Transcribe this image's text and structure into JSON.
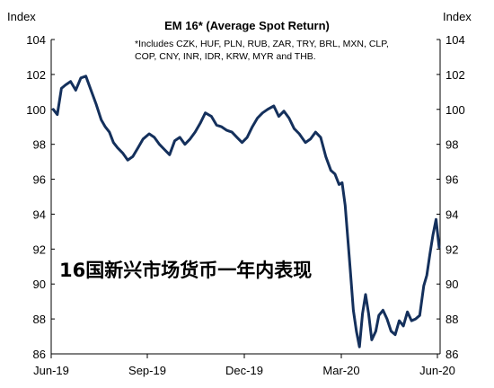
{
  "chart_data": {
    "type": "line",
    "title": "EM 16* (Average Spot Return)",
    "note_lines": [
      "*Includes CZK, HUF, PLN, RUB, ZAR, TRY, BRL, MXN, CLP,",
      "COP, CNY, INR, IDR, KRW, MYR and THB."
    ],
    "overlay_text": "16国新兴市场货币一年内表现",
    "ylabel_left": "Index",
    "ylabel_right": "Index",
    "ylim": [
      86,
      104
    ],
    "yticks": [
      "104",
      "102",
      "100",
      "98",
      "96",
      "94",
      "92",
      "90",
      "88",
      "86"
    ],
    "xticks": [
      "Jun-19",
      "Sep-19",
      "Dec-19",
      "Mar-20",
      "Jun-20"
    ],
    "grid": false,
    "color": "#14305c",
    "series": [
      {
        "x": [
          "2019-06-03",
          "2019-06-07",
          "2019-06-11",
          "2019-06-15",
          "2019-06-20",
          "2019-06-25",
          "2019-06-30",
          "2019-07-05",
          "2019-07-10",
          "2019-07-15",
          "2019-07-20",
          "2019-07-24",
          "2019-07-28",
          "2019-08-01",
          "2019-08-05",
          "2019-08-10",
          "2019-08-15",
          "2019-08-20",
          "2019-08-25",
          "2019-08-30",
          "2019-09-05",
          "2019-09-10",
          "2019-09-15",
          "2019-09-20",
          "2019-09-25",
          "2019-09-30",
          "2019-10-05",
          "2019-10-10",
          "2019-10-15",
          "2019-10-20",
          "2019-10-25",
          "2019-10-30",
          "2019-11-05",
          "2019-11-10",
          "2019-11-15",
          "2019-11-20",
          "2019-11-25",
          "2019-11-30",
          "2019-12-05",
          "2019-12-10",
          "2019-12-15",
          "2019-12-20",
          "2019-12-25",
          "2019-12-30",
          "2020-01-05",
          "2020-01-10",
          "2020-01-15",
          "2020-01-20",
          "2020-01-25",
          "2020-01-30",
          "2020-02-05",
          "2020-02-10",
          "2020-02-15",
          "2020-02-20",
          "2020-02-25",
          "2020-03-01",
          "2020-03-05",
          "2020-03-09",
          "2020-03-12",
          "2020-03-15",
          "2020-03-18",
          "2020-03-20",
          "2020-03-23",
          "2020-03-26",
          "2020-03-29",
          "2020-04-01",
          "2020-04-04",
          "2020-04-07",
          "2020-04-10",
          "2020-04-14",
          "2020-04-17",
          "2020-04-21",
          "2020-04-25",
          "2020-04-29",
          "2020-05-03",
          "2020-05-07",
          "2020-05-11",
          "2020-05-15",
          "2020-05-19",
          "2020-05-23",
          "2020-05-27",
          "2020-05-31",
          "2020-06-03",
          "2020-06-06",
          "2020-06-09",
          "2020-06-12",
          "2020-06-15"
        ],
        "values": [
          100.0,
          99.7,
          101.2,
          101.4,
          101.6,
          101.1,
          101.8,
          101.9,
          101.1,
          100.3,
          99.4,
          99.0,
          98.7,
          98.1,
          97.8,
          97.5,
          97.1,
          97.3,
          97.8,
          98.3,
          98.6,
          98.4,
          98.0,
          97.7,
          97.4,
          98.2,
          98.4,
          98.0,
          98.3,
          98.7,
          99.2,
          99.8,
          99.6,
          99.1,
          99.0,
          98.8,
          98.7,
          98.4,
          98.1,
          98.4,
          99.0,
          99.5,
          99.8,
          100.0,
          100.2,
          99.6,
          99.9,
          99.5,
          98.9,
          98.6,
          98.1,
          98.3,
          98.7,
          98.4,
          97.3,
          96.5,
          96.3,
          95.7,
          95.8,
          94.5,
          92.3,
          90.8,
          88.5,
          87.3,
          86.4,
          88.3,
          89.4,
          88.3,
          86.8,
          87.3,
          88.2,
          88.5,
          88.0,
          87.3,
          87.1,
          87.9,
          87.6,
          88.4,
          87.9,
          88.0,
          88.2,
          89.9,
          90.5,
          91.7,
          92.8,
          93.7,
          92.1
        ]
      }
    ]
  }
}
